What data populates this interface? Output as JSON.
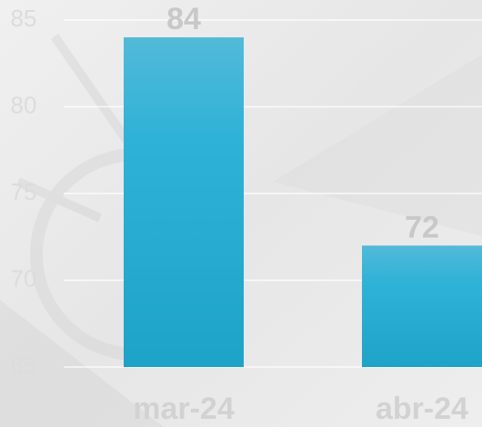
{
  "chart_data": {
    "type": "bar",
    "categories": [
      "mar-24",
      "abr-24"
    ],
    "values": [
      84,
      72
    ],
    "color": "#2bb0d4",
    "ylim": [
      65,
      85
    ],
    "yticks": [
      65,
      70,
      75,
      80,
      85
    ],
    "grid": true
  }
}
